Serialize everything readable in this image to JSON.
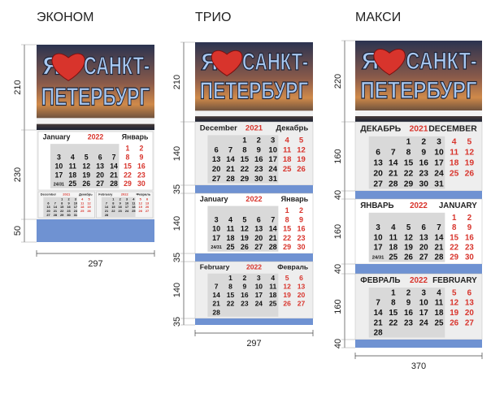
{
  "calendars": [
    {
      "title": "ЭКОНОМ",
      "width": 297,
      "heights": [
        210,
        230,
        50
      ]
    },
    {
      "title": "ТРИО",
      "width": 297,
      "heights": [
        210,
        140,
        35,
        140,
        35,
        140,
        35
      ]
    },
    {
      "title": "МАКСИ",
      "width": 370,
      "heights": [
        220,
        160,
        40,
        160,
        40,
        160,
        40
      ]
    }
  ],
  "banner": {
    "line1_left": "Я",
    "line1_right": "САНКТ-",
    "line2": "ПЕТЕРБУРГ"
  },
  "months": [
    {
      "en": "December",
      "ru": "Декабрь",
      "ru_caps": "ДЕКАБРЬ",
      "en_caps": "DECEMBER",
      "year": "2021",
      "weeks": [
        [
          null,
          null,
          1,
          2,
          3,
          4,
          5
        ],
        [
          6,
          7,
          8,
          9,
          10,
          11,
          12
        ],
        [
          13,
          14,
          15,
          16,
          17,
          18,
          19
        ],
        [
          20,
          21,
          22,
          23,
          24,
          25,
          26
        ],
        [
          27,
          28,
          29,
          30,
          31,
          null,
          null
        ]
      ]
    },
    {
      "en": "January",
      "ru": "Январь",
      "ru_caps": "ЯНВАРЬ",
      "en_caps": "JANUARY",
      "year": "2022",
      "weeks": [
        [
          null,
          null,
          null,
          null,
          null,
          1,
          2
        ],
        [
          3,
          4,
          5,
          6,
          7,
          8,
          9
        ],
        [
          10,
          11,
          12,
          13,
          14,
          15,
          16
        ],
        [
          17,
          18,
          19,
          20,
          21,
          22,
          23
        ],
        [
          "24/31",
          25,
          26,
          27,
          28,
          29,
          30
        ]
      ]
    },
    {
      "en": "February",
      "ru": "Февраль",
      "ru_caps": "ФЕВРАЛЬ",
      "en_caps": "FEBRUARY",
      "year": "2022",
      "weeks": [
        [
          null,
          1,
          2,
          3,
          4,
          5,
          6
        ],
        [
          7,
          8,
          9,
          10,
          11,
          12,
          13
        ],
        [
          14,
          15,
          16,
          17,
          18,
          19,
          20
        ],
        [
          21,
          22,
          23,
          24,
          25,
          26,
          27
        ],
        [
          28,
          null,
          null,
          null,
          null,
          null,
          null
        ]
      ]
    }
  ]
}
